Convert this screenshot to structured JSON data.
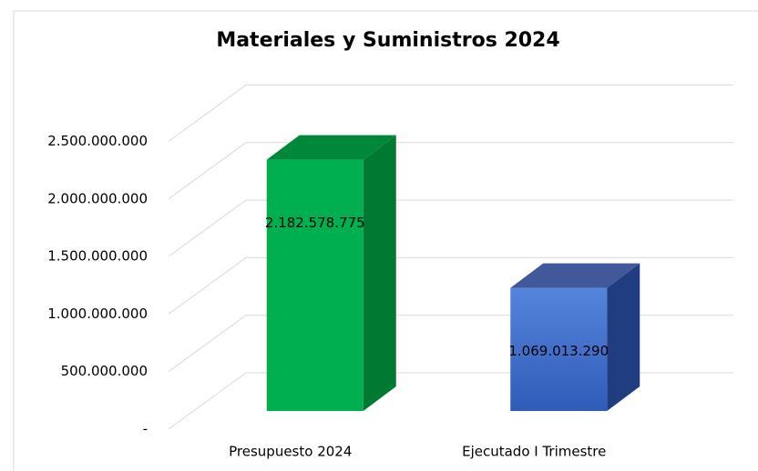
{
  "chart_data": {
    "type": "bar3d",
    "title": "Materiales y Suministros 2024",
    "categories": [
      "Presupuesto 2024",
      "Ejecutado I Trimestre"
    ],
    "values": [
      2182578775,
      1069013290
    ],
    "value_labels": [
      "2.182.578.775",
      "1.069.013.290"
    ],
    "colors": [
      "#00b050",
      "#4472c4"
    ],
    "ylim": [
      0,
      2500000000
    ],
    "yticks": [
      {
        "value": 0,
        "label": "-"
      },
      {
        "value": 500000000,
        "label": "500.000.000"
      },
      {
        "value": 1000000000,
        "label": "1.000.000.000"
      },
      {
        "value": 1500000000,
        "label": "1.500.000.000"
      },
      {
        "value": 2000000000,
        "label": "2.000.000.000"
      },
      {
        "value": 2500000000,
        "label": "2.500.000.000"
      }
    ],
    "grid": true
  }
}
